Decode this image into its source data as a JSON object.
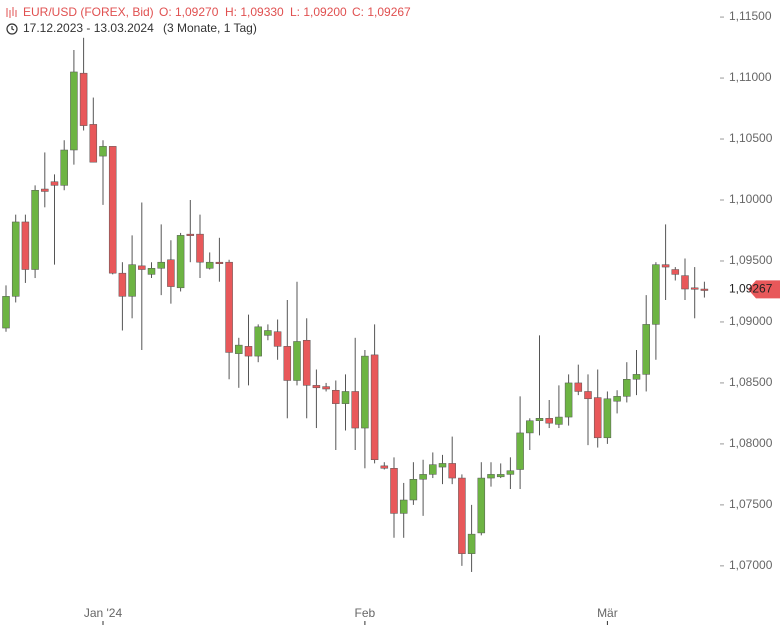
{
  "header": {
    "instrument": "EUR/USD (FOREX, Bid)",
    "open": "O: 1,09270",
    "high": "H: 1,09330",
    "low": "L: 1,09200",
    "close": "C: 1,09267",
    "range": "17.12.2023 - 13.03.2024",
    "period": "(3 Monate, 1 Tag)"
  },
  "chart_data": {
    "type": "candlestick",
    "up_color": "#6db443",
    "down_color": "#e8585a",
    "open": [
      1.0895,
      1.0921,
      1.0982,
      1.0943,
      1.1009,
      1.1015,
      1.1012,
      1.1041,
      1.1104,
      1.1062,
      1.1036,
      1.1044,
      1.094,
      1.0921,
      1.0946,
      1.0939,
      1.0944,
      1.0951,
      1.0928,
      1.0972,
      1.0972,
      1.0944,
      1.0949,
      1.0949,
      1.0874,
      1.088,
      1.0872,
      1.0889,
      1.0892,
      1.088,
      1.0852,
      1.0885,
      1.0848,
      1.0847,
      1.0844,
      1.0833,
      1.0843,
      1.0813,
      1.0873,
      1.0782,
      1.078,
      1.0743,
      1.0754,
      1.0771,
      1.0775,
      1.0781,
      1.0784,
      1.0772,
      1.071,
      1.0727,
      1.0772,
      1.0773,
      1.0775,
      1.0779,
      1.0809,
      1.0819,
      1.0821,
      1.0816,
      1.0822,
      1.085,
      1.0843,
      1.0838,
      1.0805,
      1.0835,
      1.0839,
      1.0853,
      1.0857,
      1.0898,
      1.0947,
      1.0943,
      1.0938,
      1.0928,
      1.0927
    ],
    "high": [
      1.093,
      1.0988,
      1.0988,
      1.1012,
      1.1039,
      1.1021,
      1.1049,
      1.1123,
      1.1133,
      1.1084,
      1.1049,
      1.1044,
      1.0949,
      1.0971,
      1.0998,
      1.0949,
      1.098,
      1.0967,
      1.0973,
      1.1,
      1.0988,
      1.0957,
      1.0969,
      1.0951,
      1.0887,
      1.0906,
      1.0898,
      1.0898,
      1.0902,
      1.0918,
      1.0933,
      1.0903,
      1.0861,
      1.085,
      1.0852,
      1.0857,
      1.0887,
      1.0877,
      1.0898,
      1.0785,
      1.0789,
      1.0768,
      1.0785,
      1.0787,
      1.0793,
      1.0791,
      1.0806,
      1.0775,
      1.075,
      1.0785,
      1.0785,
      1.0784,
      1.0789,
      1.0839,
      1.0821,
      1.0889,
      1.0836,
      1.0848,
      1.0857,
      1.0865,
      1.0857,
      1.0861,
      1.0843,
      1.0844,
      1.0867,
      1.0877,
      1.0922,
      1.0949,
      1.098,
      1.0945,
      1.0952,
      1.0945,
      1.0933
    ],
    "low": [
      1.0892,
      1.0916,
      1.0932,
      1.0936,
      1.0994,
      1.0947,
      1.1008,
      1.1029,
      1.1057,
      1.1031,
      1.0996,
      1.0939,
      1.0893,
      1.0903,
      1.0877,
      1.0936,
      1.0922,
      1.0915,
      1.0925,
      1.0949,
      1.0936,
      1.0943,
      1.0933,
      1.0853,
      1.0846,
      1.0848,
      1.0867,
      1.0885,
      1.0869,
      1.0821,
      1.0848,
      1.0821,
      1.0813,
      1.0843,
      1.0795,
      1.0811,
      1.0795,
      1.078,
      1.0784,
      1.0779,
      1.0723,
      1.0723,
      1.075,
      1.0741,
      1.0772,
      1.0767,
      1.0767,
      1.07,
      1.0695,
      1.0725,
      1.0765,
      1.0772,
      1.0763,
      1.0763,
      1.0795,
      1.0807,
      1.0813,
      1.0813,
      1.0815,
      1.084,
      1.0799,
      1.0797,
      1.08,
      1.0825,
      1.0834,
      1.084,
      1.0843,
      1.0869,
      1.0918,
      1.0934,
      1.0918,
      1.0903,
      1.092
    ],
    "close": [
      1.0921,
      1.0982,
      1.0943,
      1.1008,
      1.1007,
      1.1012,
      1.1041,
      1.1105,
      1.1061,
      1.1031,
      1.1044,
      1.094,
      1.0921,
      1.0947,
      1.0943,
      1.0944,
      1.0949,
      1.0929,
      1.0971,
      1.0971,
      1.0949,
      1.0949,
      1.0948,
      1.0875,
      1.0881,
      1.0872,
      1.0896,
      1.0893,
      1.088,
      1.0852,
      1.0884,
      1.0848,
      1.0846,
      1.0845,
      1.0833,
      1.0843,
      1.0813,
      1.0872,
      1.0787,
      1.078,
      1.0743,
      1.0754,
      1.0771,
      1.0775,
      1.0783,
      1.0784,
      1.0772,
      1.071,
      1.0726,
      1.0772,
      1.0775,
      1.0775,
      1.0778,
      1.0809,
      1.0819,
      1.0821,
      1.0817,
      1.0822,
      1.085,
      1.0843,
      1.0837,
      1.0805,
      1.0837,
      1.0839,
      1.0853,
      1.0857,
      1.0898,
      1.0947,
      1.0945,
      1.0939,
      1.0927,
      1.0927,
      1.09267
    ],
    "last_label": "1,09267",
    "ylim": [
      1.0672,
      1.1164
    ],
    "yticks": [
      {
        "value": 1.115,
        "label": "1,11500"
      },
      {
        "value": 1.11,
        "label": "1,11000"
      },
      {
        "value": 1.105,
        "label": "1,10500"
      },
      {
        "value": 1.1,
        "label": "1,10000"
      },
      {
        "value": 1.095,
        "label": "1,09500"
      },
      {
        "value": 1.09,
        "label": "1,09000"
      },
      {
        "value": 1.085,
        "label": "1,08500"
      },
      {
        "value": 1.08,
        "label": "1,08000"
      },
      {
        "value": 1.075,
        "label": "1,07500"
      },
      {
        "value": 1.07,
        "label": "1,07000"
      }
    ],
    "xticks": [
      {
        "value": 10,
        "label": "Jan '24"
      },
      {
        "value": 37,
        "label": "Feb"
      },
      {
        "value": 62,
        "label": "Mär"
      }
    ],
    "grid": false
  }
}
